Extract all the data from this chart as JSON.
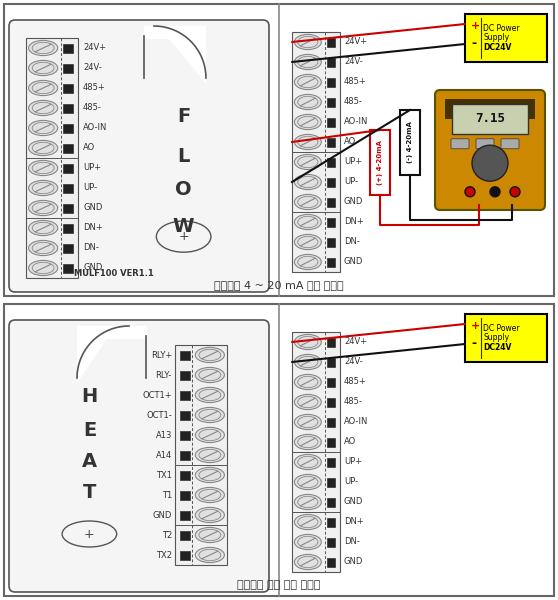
{
  "title_top": "유량측정 4 ~ 20 mA 전선 터미널",
  "title_bottom": "열에너지 측정 전선 터미널",
  "flow_labels": [
    "24V+",
    "24V-",
    "485+",
    "485-",
    "AO-IN",
    "AO",
    "UP+",
    "UP-",
    "GND",
    "DN+",
    "DN-",
    "GND"
  ],
  "heat_labels_left": [
    "RLY+",
    "RLY-",
    "OCT1+",
    "OCT1-",
    "A13",
    "A14",
    "TX1",
    "T1",
    "GND",
    "T2",
    "TX2"
  ],
  "flow_module_text": "FLOW",
  "flow_module_model": "MULF100 VER1.1",
  "heat_module_text": "HEAT",
  "dc_power_text": "DC Power\nSupply\nDC24V",
  "bg_color": "#ffffff",
  "red_wire": "#cc0000",
  "black_wire": "#111111",
  "dc_box_color": "#ffff00",
  "screw_face": "#e0e0e0",
  "screw_edge": "#888888",
  "module_bg": "#f5f5f5",
  "module_edge": "#555555",
  "terminal_bg": "#f0f0f0",
  "terminal_edge": "#555555",
  "sep_line": "#555555"
}
